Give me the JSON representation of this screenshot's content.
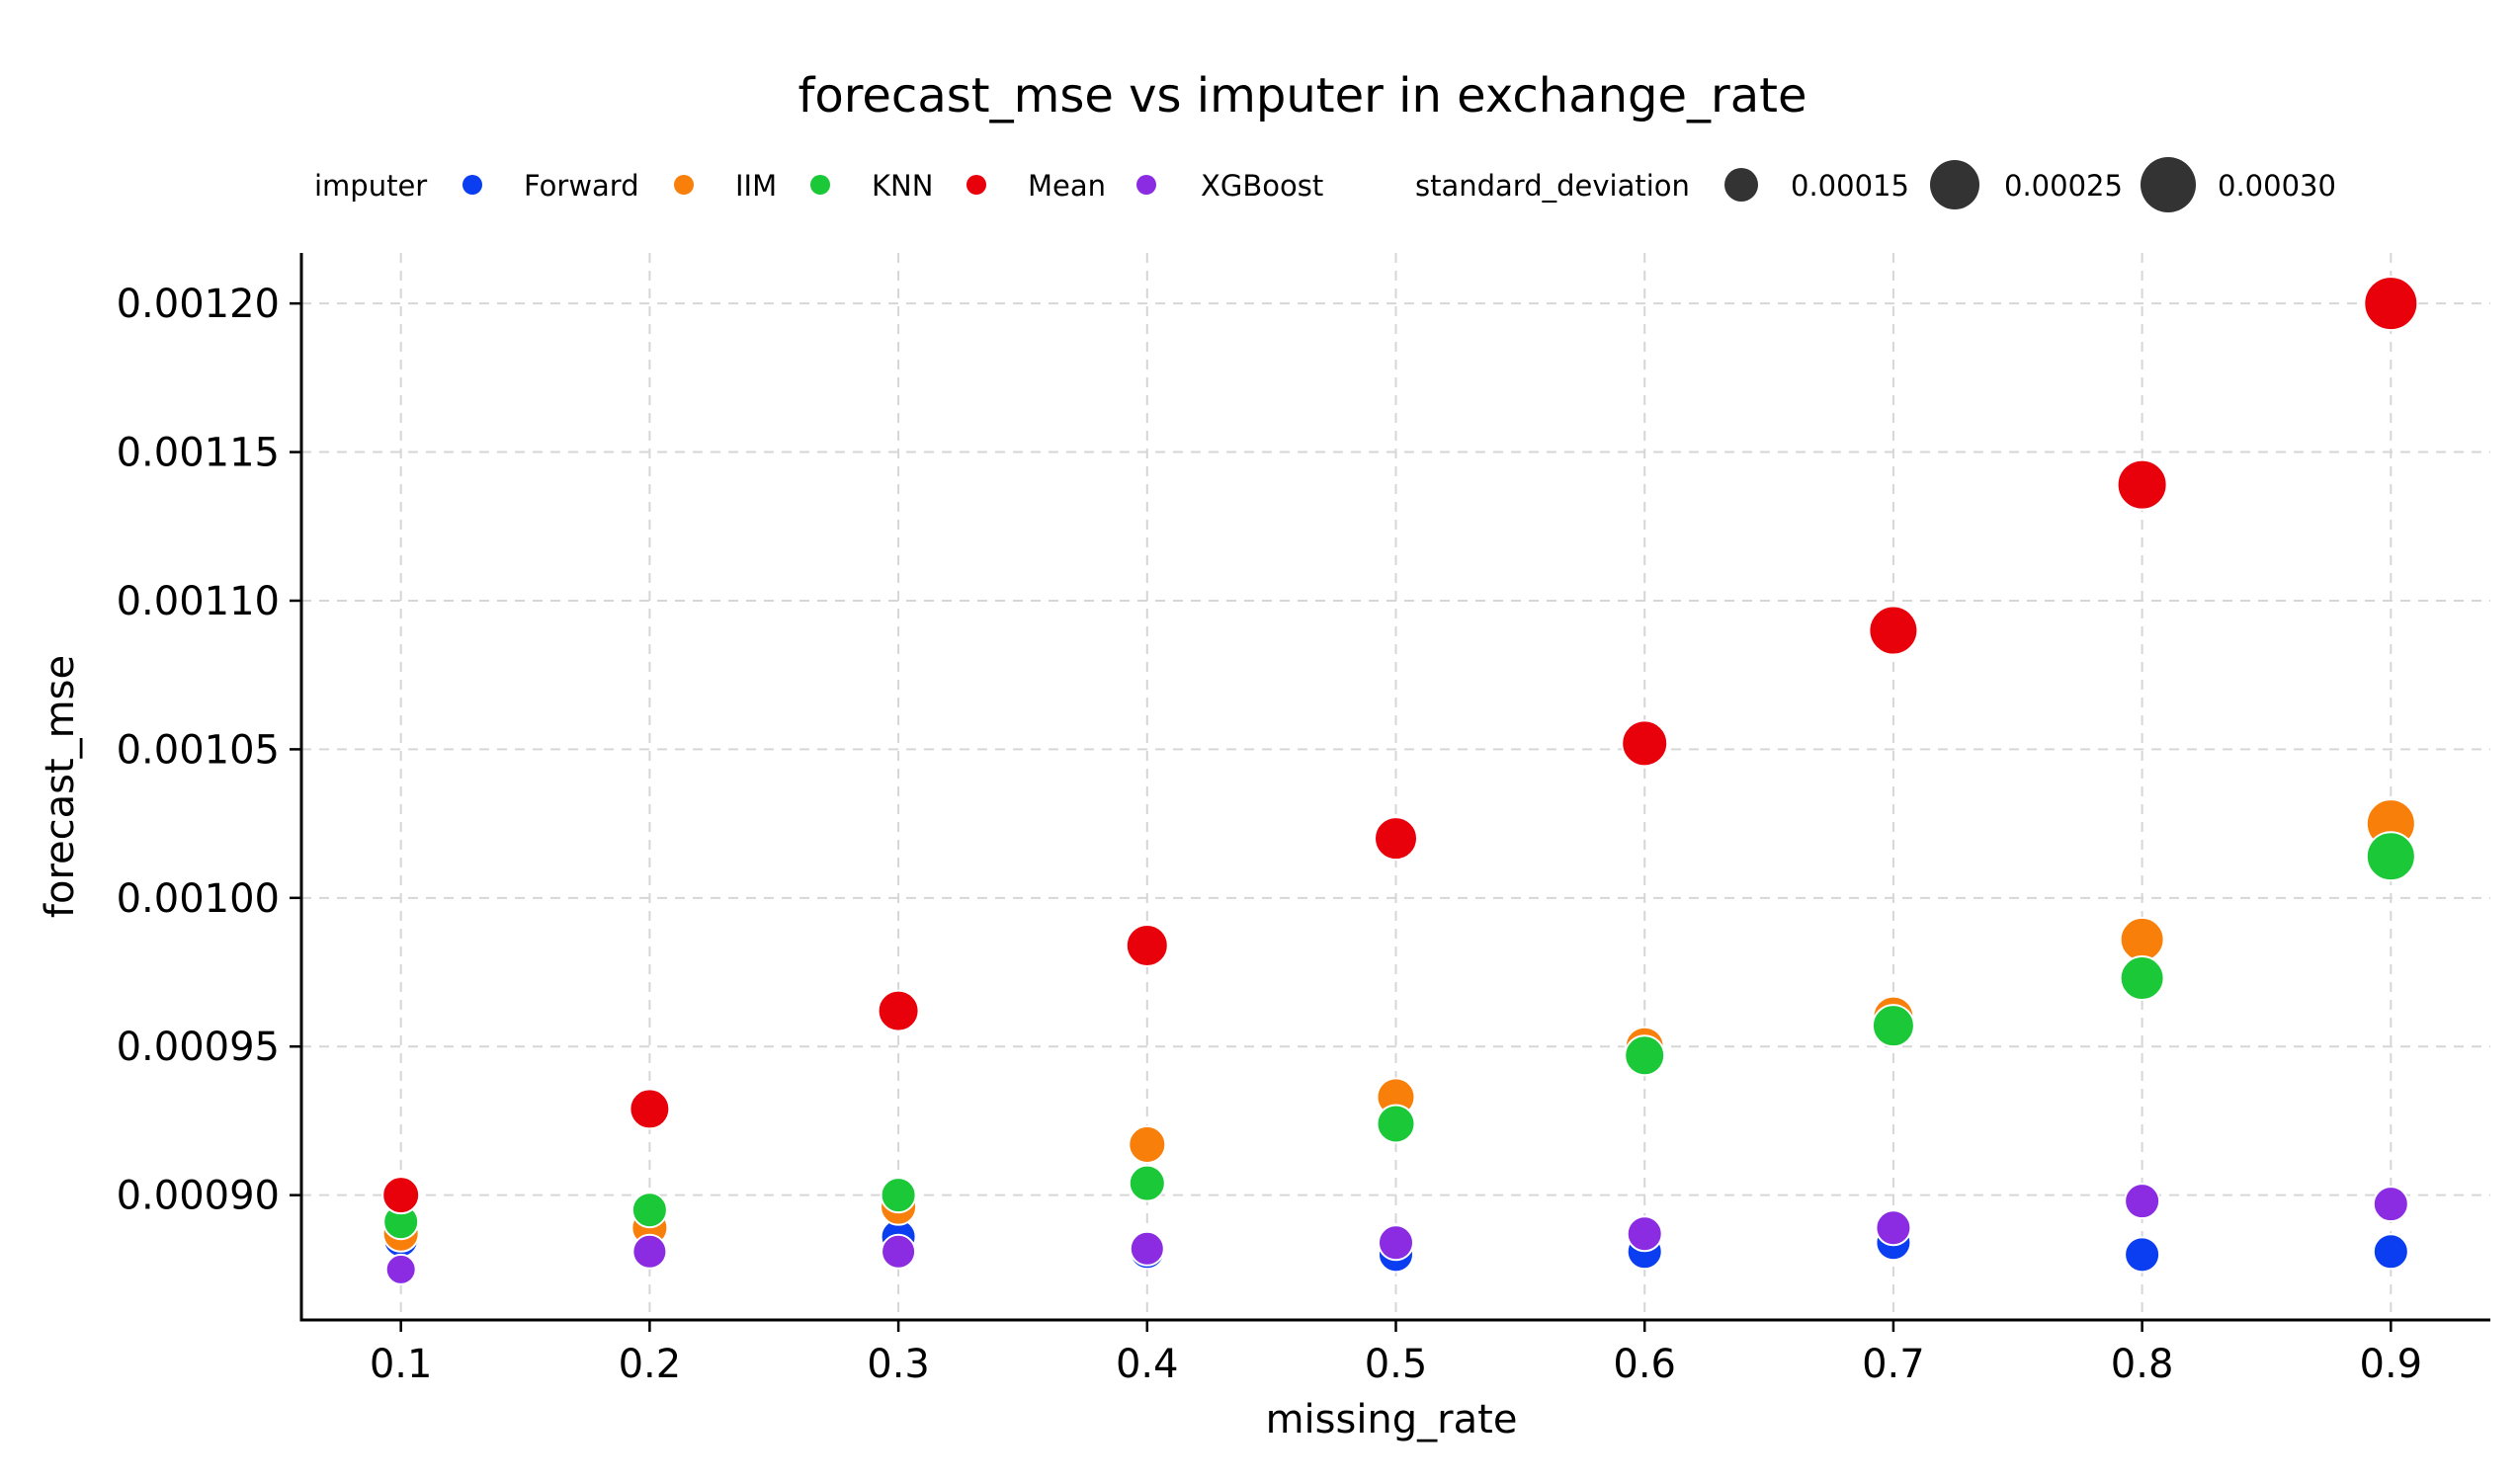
{
  "chart_data": {
    "type": "scatter",
    "title": "forecast_mse vs imputer in exchange_rate",
    "xlabel": "missing_rate",
    "ylabel": "forecast_mse",
    "xlim": [
      0.06,
      0.94
    ],
    "ylim": [
      0.000858,
      0.001217
    ],
    "xticks": [
      0.1,
      0.2,
      0.3,
      0.4,
      0.5,
      0.6,
      0.7,
      0.8,
      0.9
    ],
    "xtick_labels": [
      "0.1",
      "0.2",
      "0.3",
      "0.4",
      "0.5",
      "0.6",
      "0.7",
      "0.8",
      "0.9"
    ],
    "yticks": [
      0.0009,
      0.00095,
      0.001,
      0.00105,
      0.0011,
      0.00115,
      0.0012
    ],
    "ytick_labels": [
      "0.00090",
      "0.00095",
      "0.00100",
      "0.00105",
      "0.00110",
      "0.00115",
      "0.00120"
    ],
    "grid": true,
    "legend": {
      "placement": "top",
      "hue_title": "imputer",
      "size_title": "standard_deviation",
      "size_entries": [
        {
          "label": "0.00015",
          "value": 0.00015
        },
        {
          "label": "0.00025",
          "value": 0.00025
        },
        {
          "label": "0.00030",
          "value": 0.0003
        }
      ]
    },
    "series": [
      {
        "name": "Forward",
        "color": "#0a3ef0",
        "x": [
          0.1,
          0.2,
          0.3,
          0.4,
          0.5,
          0.6,
          0.7,
          0.8,
          0.9
        ],
        "y": [
          0.000885,
          0.000888,
          0.000886,
          0.000881,
          0.00088,
          0.000881,
          0.000884,
          0.00088,
          0.000881
        ],
        "std": [
          0.00011,
          0.00011,
          0.00011,
          0.00011,
          0.00011,
          0.00011,
          0.00011,
          0.00011,
          0.00011
        ]
      },
      {
        "name": "IIM",
        "color": "#f87f0a",
        "x": [
          0.1,
          0.2,
          0.3,
          0.4,
          0.5,
          0.6,
          0.7,
          0.8,
          0.9
        ],
        "y": [
          0.000887,
          0.000889,
          0.000896,
          0.000917,
          0.000933,
          0.00095,
          0.00096,
          0.000986,
          0.001025
        ],
        "std": [
          0.00012,
          0.00012,
          0.00012,
          0.00013,
          0.00014,
          0.00015,
          0.00017,
          0.0002,
          0.00025
        ]
      },
      {
        "name": "KNN",
        "color": "#1ac838",
        "x": [
          0.1,
          0.2,
          0.3,
          0.4,
          0.5,
          0.6,
          0.7,
          0.8,
          0.9
        ],
        "y": [
          0.000891,
          0.000895,
          0.0009,
          0.000904,
          0.000924,
          0.000947,
          0.000957,
          0.000973,
          0.001014
        ],
        "std": [
          0.00011,
          0.00011,
          0.00011,
          0.00012,
          0.00014,
          0.00016,
          0.00018,
          0.0002,
          0.00025
        ]
      },
      {
        "name": "Mean",
        "color": "#e8000b",
        "x": [
          0.1,
          0.2,
          0.3,
          0.4,
          0.5,
          0.6,
          0.7,
          0.8,
          0.9
        ],
        "y": [
          0.0009,
          0.000929,
          0.000962,
          0.000984,
          0.00102,
          0.001052,
          0.00109,
          0.001139,
          0.0012
        ],
        "std": [
          0.00013,
          0.00016,
          0.00017,
          0.00018,
          0.00019,
          0.00022,
          0.00025,
          0.00026,
          0.0003
        ]
      },
      {
        "name": "XGBoost",
        "color": "#8b2be2",
        "x": [
          0.1,
          0.2,
          0.3,
          0.4,
          0.5,
          0.6,
          0.7,
          0.8,
          0.9
        ],
        "y": [
          0.000875,
          0.000881,
          0.000881,
          0.000882,
          0.000884,
          0.000887,
          0.000889,
          0.000898,
          0.000897
        ],
        "std": [
          9e-05,
          0.0001,
          0.0001,
          0.0001,
          0.00011,
          0.00011,
          0.00011,
          0.00011,
          0.00011
        ]
      }
    ]
  }
}
